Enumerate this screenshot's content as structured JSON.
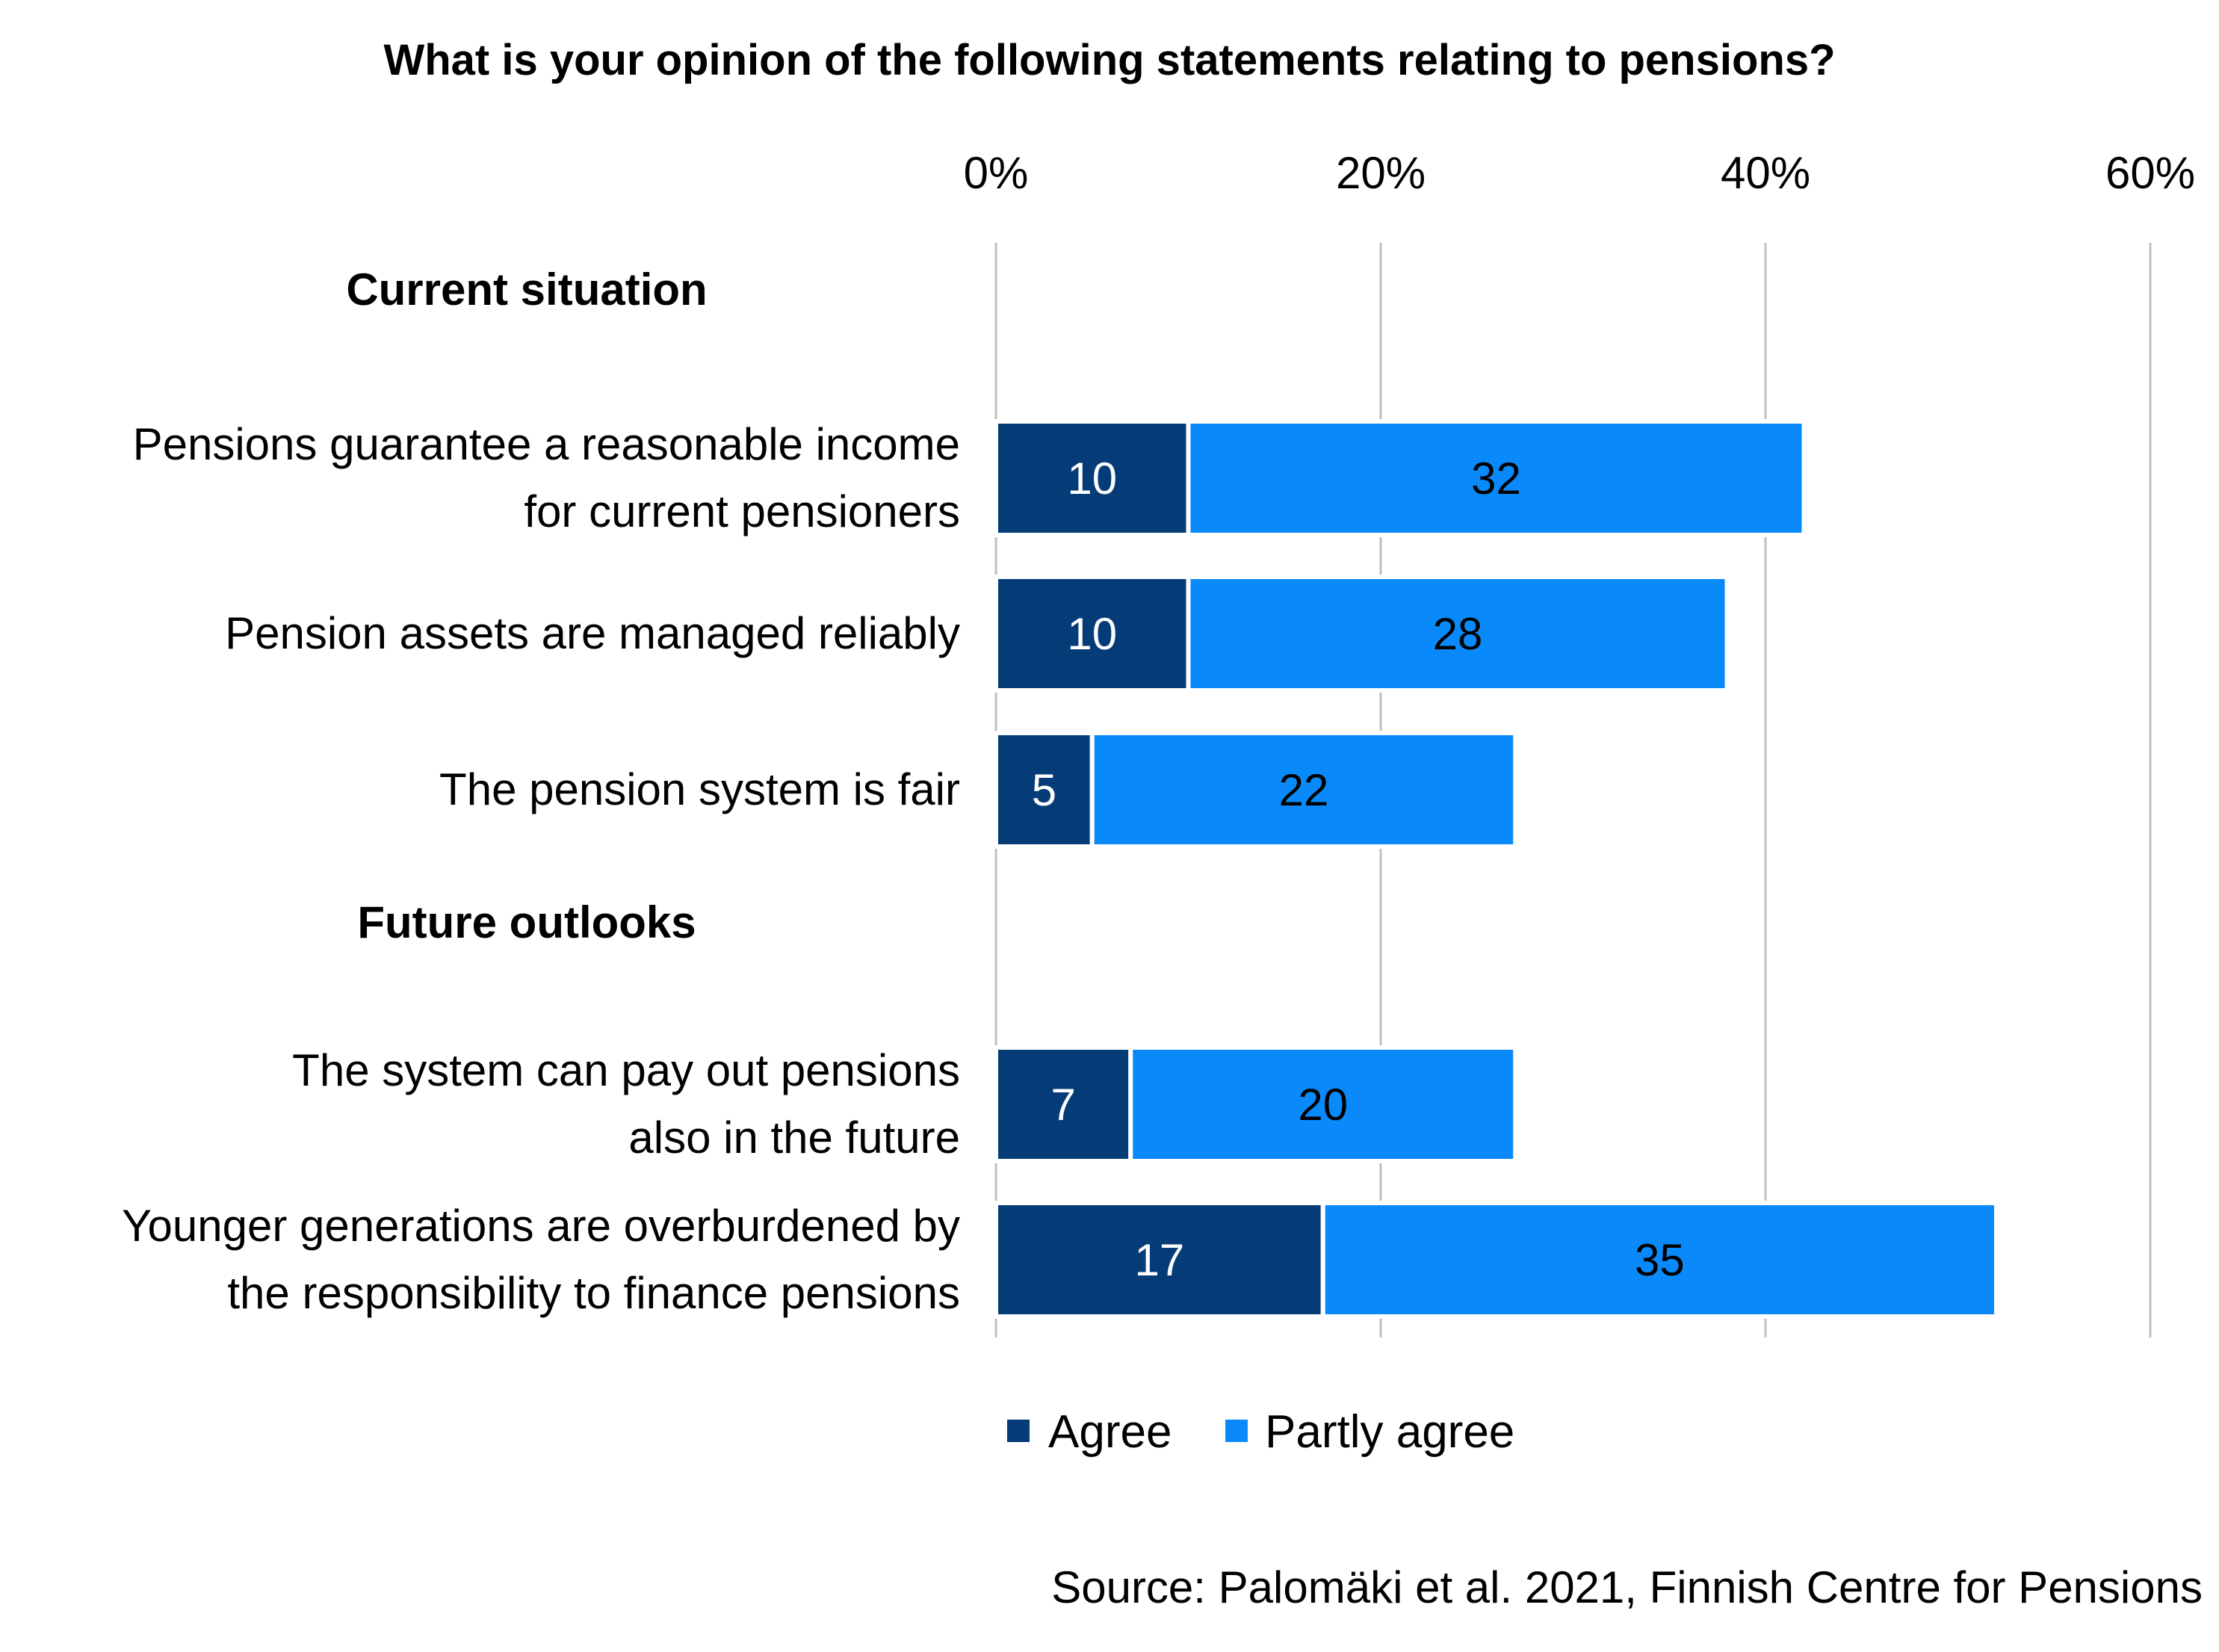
{
  "chart_data": {
    "type": "bar",
    "orientation": "horizontal",
    "stacked": true,
    "title": "What is your opinion of the following statements relating to pensions?",
    "x_ticks": [
      "0%",
      "20%",
      "40%",
      "60%"
    ],
    "xlim": [
      0,
      60
    ],
    "grid": true,
    "groups": [
      {
        "label": "Current situation",
        "categories": [
          [
            "Pensions guarantee a reasonable income",
            "for current pensioners"
          ],
          [
            "Pension assets are managed reliably"
          ],
          [
            "The pension system is fair"
          ]
        ],
        "agree": [
          10,
          10,
          5
        ],
        "partly_agree": [
          32,
          28,
          22
        ]
      },
      {
        "label": "Future outlooks",
        "categories": [
          [
            "The system can pay out pensions",
            "also in the future"
          ],
          [
            "Younger generations are overburdened by",
            "the responsibility to finance pensions"
          ]
        ],
        "agree": [
          7,
          17
        ],
        "partly_agree": [
          20,
          35
        ]
      }
    ],
    "series": [
      {
        "name": "Agree",
        "color": "#053c78"
      },
      {
        "name": "Partly agree",
        "color": "#0a8afa"
      }
    ],
    "legend_position": "bottom",
    "source": "Source: Palomäki et al. 2021, Finnish Centre for Pensions"
  }
}
